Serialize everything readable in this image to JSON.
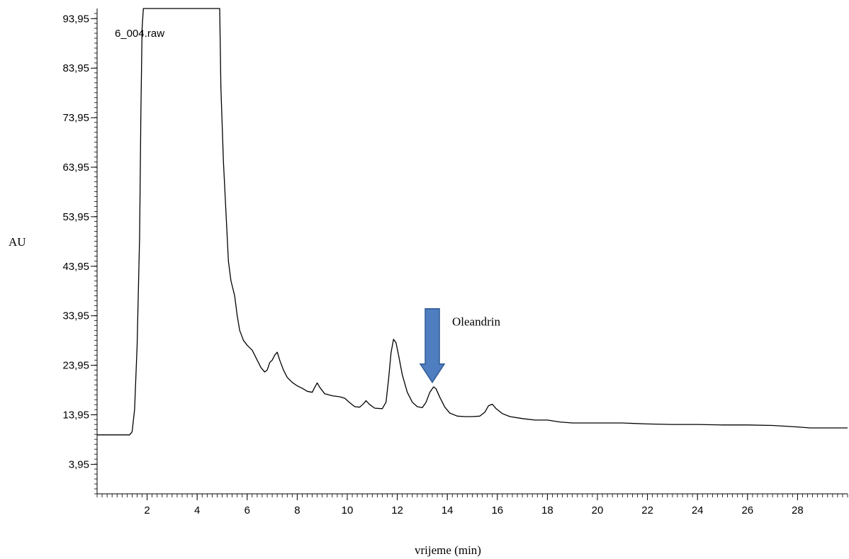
{
  "chart_data": {
    "type": "line",
    "title": "",
    "file_label": "6_004.raw",
    "xlabel": "vrijeme (min)",
    "ylabel": "AU",
    "xlim": [
      0,
      30
    ],
    "ylim": [
      -2,
      96
    ],
    "x_ticks": [
      "2",
      "4",
      "6",
      "8",
      "10",
      "12",
      "14",
      "16",
      "18",
      "20",
      "22",
      "24",
      "26",
      "28"
    ],
    "y_ticks": [
      "3,95",
      "13,95",
      "23,95",
      "33,95",
      "43,95",
      "53,95",
      "63,95",
      "73,95",
      "83,95",
      "93,95"
    ],
    "grid": false,
    "annotation": {
      "text": "Oleandrin",
      "x": 13.4,
      "y": 20.5,
      "arrow_color": "#4f7ec0"
    },
    "series": [
      {
        "name": "",
        "color": "#000000",
        "points": [
          [
            0.0,
            9.9
          ],
          [
            1.3,
            9.9
          ],
          [
            1.4,
            10.5
          ],
          [
            1.5,
            15
          ],
          [
            1.6,
            28
          ],
          [
            1.7,
            50
          ],
          [
            1.75,
            75
          ],
          [
            1.8,
            92
          ],
          [
            1.85,
            96
          ],
          [
            4.9,
            96
          ],
          [
            4.95,
            80
          ],
          [
            5.05,
            65
          ],
          [
            5.15,
            55
          ],
          [
            5.25,
            45
          ],
          [
            5.35,
            41
          ],
          [
            5.5,
            38
          ],
          [
            5.6,
            34
          ],
          [
            5.7,
            31
          ],
          [
            5.85,
            29
          ],
          [
            6.0,
            28
          ],
          [
            6.2,
            27
          ],
          [
            6.4,
            25
          ],
          [
            6.55,
            23.5
          ],
          [
            6.7,
            22.6
          ],
          [
            6.8,
            23
          ],
          [
            6.9,
            24.5
          ],
          [
            7.0,
            25
          ],
          [
            7.1,
            26
          ],
          [
            7.2,
            26.6
          ],
          [
            7.3,
            25
          ],
          [
            7.45,
            23
          ],
          [
            7.6,
            21.5
          ],
          [
            7.8,
            20.5
          ],
          [
            8.0,
            19.8
          ],
          [
            8.2,
            19.3
          ],
          [
            8.4,
            18.7
          ],
          [
            8.6,
            18.5
          ],
          [
            8.7,
            19.5
          ],
          [
            8.8,
            20.4
          ],
          [
            8.9,
            19.5
          ],
          [
            9.1,
            18.2
          ],
          [
            9.4,
            17.8
          ],
          [
            9.7,
            17.6
          ],
          [
            9.9,
            17.3
          ],
          [
            10.1,
            16.4
          ],
          [
            10.3,
            15.6
          ],
          [
            10.5,
            15.5
          ],
          [
            10.65,
            16.2
          ],
          [
            10.75,
            16.8
          ],
          [
            10.9,
            16.0
          ],
          [
            11.1,
            15.3
          ],
          [
            11.4,
            15.2
          ],
          [
            11.55,
            16.5
          ],
          [
            11.65,
            21
          ],
          [
            11.75,
            26.5
          ],
          [
            11.85,
            29.2
          ],
          [
            11.95,
            28.5
          ],
          [
            12.05,
            26
          ],
          [
            12.2,
            22
          ],
          [
            12.4,
            18.5
          ],
          [
            12.6,
            16.5
          ],
          [
            12.8,
            15.6
          ],
          [
            13.0,
            15.4
          ],
          [
            13.15,
            16.5
          ],
          [
            13.3,
            18.5
          ],
          [
            13.45,
            19.6
          ],
          [
            13.55,
            19.2
          ],
          [
            13.7,
            17.5
          ],
          [
            13.9,
            15.5
          ],
          [
            14.1,
            14.3
          ],
          [
            14.4,
            13.7
          ],
          [
            14.7,
            13.6
          ],
          [
            15.0,
            13.6
          ],
          [
            15.3,
            13.7
          ],
          [
            15.5,
            14.5
          ],
          [
            15.65,
            15.8
          ],
          [
            15.8,
            16.1
          ],
          [
            15.95,
            15.2
          ],
          [
            16.2,
            14.2
          ],
          [
            16.5,
            13.6
          ],
          [
            17.0,
            13.2
          ],
          [
            17.5,
            12.9
          ],
          [
            18.0,
            12.9
          ],
          [
            18.5,
            12.5
          ],
          [
            19.0,
            12.3
          ],
          [
            20.0,
            12.3
          ],
          [
            21.0,
            12.3
          ],
          [
            22.0,
            12.1
          ],
          [
            23.0,
            12.0
          ],
          [
            24.0,
            12.0
          ],
          [
            25.0,
            11.9
          ],
          [
            26.0,
            11.9
          ],
          [
            27.0,
            11.8
          ],
          [
            28.0,
            11.5
          ],
          [
            28.5,
            11.3
          ],
          [
            30.0,
            11.3
          ]
        ]
      }
    ]
  }
}
